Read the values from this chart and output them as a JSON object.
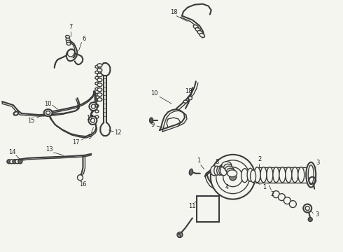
{
  "bg_color": "#f5f5f0",
  "line_color": "#3a3a3a",
  "text_color": "#222222",
  "fig_width": 4.9,
  "fig_height": 3.6,
  "dpi": 100
}
